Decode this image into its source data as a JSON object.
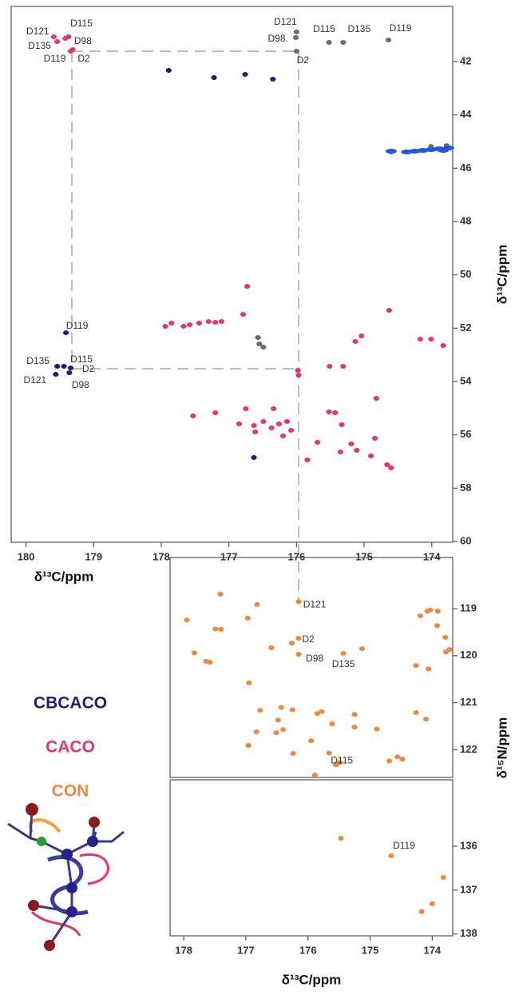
{
  "chart_data": [
    {
      "type": "scatter",
      "x_label": "δ¹³C/ppm",
      "y_label": "δ¹³C/ppm",
      "xlim": [
        180.22,
        173.69
      ],
      "ylim": [
        60.03,
        39.93
      ],
      "xticks": [
        180,
        179,
        178,
        177,
        176,
        175,
        174
      ],
      "yticks": [
        42,
        44,
        46,
        48,
        50,
        52,
        54,
        56,
        58,
        60
      ],
      "series": [
        {
          "color": "#6b6b6b",
          "x": [
            176.0,
            176.01,
            176.0,
            175.52,
            175.31,
            174.64,
            176.57,
            176.55,
            176.49,
            174.6,
            174.01,
            173.78
          ],
          "values": [
            40.89,
            41.1,
            41.61,
            41.28,
            41.28,
            41.19,
            52.35,
            52.59,
            52.71,
            45.39,
            45.18,
            45.15
          ],
          "labels": [
            "D121",
            "D98",
            "D2",
            "D115",
            "D135",
            "D119",
            null,
            null,
            null,
            null,
            null,
            null
          ]
        },
        {
          "color": "#1a56e8",
          "x": [
            174.6,
            174.37,
            174.25,
            174.13,
            174.01,
            173.89,
            173.83,
            173.75
          ],
          "values": [
            45.36,
            45.39,
            45.36,
            45.33,
            45.3,
            45.27,
            45.33,
            45.24
          ]
        },
        {
          "name": "CBCACO",
          "color": "#1b1f7a",
          "x": [
            177.89,
            177.22,
            176.76,
            176.35,
            179.41,
            179.54,
            179.44,
            179.34,
            179.56,
            179.36,
            176.63
          ],
          "values": [
            42.33,
            42.6,
            42.48,
            42.66,
            52.17,
            53.43,
            53.43,
            53.49,
            53.73,
            53.67,
            56.85
          ],
          "labels": [
            null,
            null,
            null,
            null,
            "D119",
            "D135",
            "D115",
            "D2",
            "D121",
            "D98",
            null
          ]
        },
        {
          "name": "CACO",
          "color": "#e8336d",
          "x": [
            179.59,
            179.54,
            179.42,
            179.37,
            179.34,
            179.31,
            177.94,
            177.85,
            177.67,
            177.58,
            177.44,
            177.3,
            177.2,
            177.11,
            176.79,
            174.63,
            176.73,
            175.04,
            175.13,
            174.17,
            174.01,
            173.83,
            175.51,
            175.31,
            175.98,
            175.97,
            177.53,
            177.2,
            176.75,
            176.34,
            174.82,
            175.52,
            175.43,
            175.33,
            174.84,
            175.19,
            176.85,
            176.63,
            176.49,
            176.37,
            176.26,
            176.14,
            176.08,
            176.2,
            176.61,
            175.69,
            175.35,
            175.11,
            174.9,
            174.66,
            174.6,
            175.84
          ],
          "values": [
            41.07,
            41.25,
            41.13,
            41.07,
            41.61,
            41.55,
            51.93,
            51.81,
            51.93,
            51.87,
            51.81,
            51.75,
            51.78,
            51.75,
            51.48,
            51.33,
            50.43,
            52.29,
            52.5,
            52.41,
            52.41,
            52.65,
            53.43,
            53.43,
            53.58,
            53.76,
            55.29,
            55.17,
            55.02,
            55.02,
            54.63,
            55.14,
            55.17,
            55.62,
            56.13,
            56.34,
            55.59,
            55.65,
            55.5,
            55.74,
            55.59,
            55.5,
            55.83,
            56.04,
            55.89,
            56.28,
            56.64,
            56.58,
            56.79,
            57.12,
            57.24,
            56.94
          ],
          "labels": [
            "D121",
            "D135",
            "D98",
            "D115",
            "D119",
            "D2",
            null,
            null,
            null,
            null,
            null,
            null,
            null,
            null,
            null,
            null,
            null,
            null,
            null,
            null,
            null,
            null,
            null,
            null,
            null,
            null,
            null,
            null,
            null,
            null,
            null,
            null,
            null,
            null,
            null,
            null,
            null,
            null,
            null,
            null,
            null,
            null,
            null,
            null,
            null,
            null,
            null,
            null,
            null,
            null,
            null,
            null
          ]
        }
      ]
    },
    {
      "type": "scatter",
      "y_label": "δ¹⁵N/ppm",
      "xlim": [
        178.22,
        173.67
      ],
      "ylim": [
        122.59,
        117.91
      ],
      "yticks": [
        119,
        120,
        121,
        122
      ],
      "series": [
        {
          "name": "CON",
          "color": "#f0883c",
          "x": [
            176.15,
            176.15,
            176.15,
            175.43,
            175.66,
            177.95,
            177.41,
            177.49,
            177.4,
            176.82,
            176.97,
            177.83,
            177.64,
            177.58,
            176.95,
            176.59,
            176.26,
            175.13,
            176.25,
            176.77,
            176.43,
            176.48,
            176.4,
            176.51,
            176.83,
            176.96,
            175.95,
            175.85,
            175.78,
            175.61,
            175.25,
            175.25,
            174.89,
            175.49,
            175.55,
            175.89,
            176.24,
            174.69,
            174.56,
            174.48,
            174.26,
            174.1,
            174.19,
            174.08,
            174.03,
            173.91,
            173.92,
            173.79,
            173.78,
            173.72,
            174.26,
            174.06
          ],
          "values": [
            118.85,
            119.63,
            119.97,
            119.95,
            122.07,
            119.24,
            118.69,
            119.43,
            119.44,
            118.91,
            119.2,
            119.94,
            120.12,
            120.14,
            120.58,
            119.83,
            119.73,
            119.85,
            121.15,
            121.16,
            121.1,
            121.37,
            121.57,
            121.64,
            121.62,
            121.91,
            121.81,
            121.23,
            121.19,
            121.45,
            121.52,
            121.25,
            121.56,
            122.27,
            122.32,
            122.54,
            122.08,
            122.24,
            122.15,
            122.2,
            121.21,
            121.35,
            119.15,
            119.05,
            119.03,
            119.05,
            119.36,
            119.61,
            119.92,
            119.87,
            120.21,
            120.28
          ],
          "labels": [
            "D121",
            "D2",
            "D98",
            "D135",
            "D115",
            null,
            null,
            null,
            null,
            null,
            null,
            null,
            null,
            null,
            null,
            null,
            null,
            null,
            null,
            null,
            null,
            null,
            null,
            null,
            null,
            null,
            null,
            null,
            null,
            null,
            null,
            null,
            null,
            null,
            null,
            null,
            null,
            null,
            null,
            null,
            null,
            null,
            null,
            null,
            null,
            null,
            null,
            null,
            null,
            null,
            null,
            null
          ]
        }
      ]
    },
    {
      "type": "scatter",
      "x_label": "δ¹³C/ppm",
      "xlim": [
        178.22,
        173.67
      ],
      "ylim": [
        138.04,
        134.49
      ],
      "xticks": [
        178,
        177,
        176,
        175,
        174
      ],
      "yticks": [
        136,
        137,
        138
      ],
      "series": [
        {
          "color": "#f0883c",
          "x": [
            175.47,
            174.66,
            173.82,
            174.0,
            174.17
          ],
          "values": [
            135.82,
            136.22,
            136.71,
            137.31,
            137.49
          ],
          "labels": [
            null,
            "D119",
            null,
            null,
            null
          ]
        }
      ]
    }
  ]
}
